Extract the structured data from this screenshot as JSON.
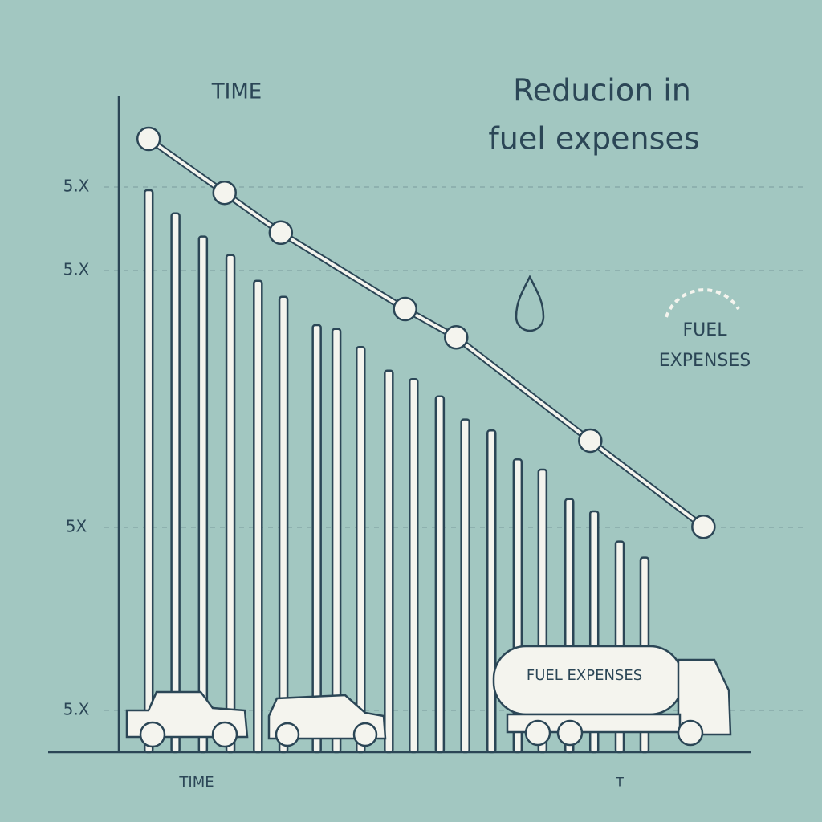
{
  "chart_data": {
    "type": "bar",
    "title_lines": [
      "Reducion in",
      "fuel expenses"
    ],
    "top_label": "TIME",
    "xlabel": "TIME",
    "annotations": [
      "FUEL",
      "EXPENSES",
      "FUEL EXPENSES",
      "T"
    ],
    "xlim": [
      0,
      100
    ],
    "ylim": [
      0,
      100
    ],
    "yticks": [
      {
        "value": 88,
        "label": "5.X"
      },
      {
        "value": 75,
        "label": "5.X"
      },
      {
        "value": 35,
        "label": "5X"
      },
      {
        "value": 6.5,
        "label": "5.X"
      }
    ],
    "grid": true,
    "series": [
      {
        "type": "bar",
        "color": "#f4f4ee",
        "x": [
          8.0,
          12.1,
          16.3,
          20.5,
          24.7,
          28.6,
          33.7,
          36.7,
          40.4,
          44.7,
          48.5,
          52.5,
          56.4,
          60.4,
          64.4,
          68.2,
          72.3,
          76.1,
          80.0,
          83.8
        ],
        "values": [
          87.5,
          83.9,
          80.3,
          77.4,
          73.4,
          70.9,
          66.5,
          65.9,
          63.1,
          59.4,
          58.1,
          55.4,
          51.8,
          50.1,
          45.6,
          44.0,
          39.4,
          37.5,
          32.8,
          30.3
        ]
      },
      {
        "type": "line",
        "color": "#f4f4ee",
        "x": [
          8.0,
          19.6,
          28.2,
          47.2,
          55.0,
          75.5,
          92.8
        ],
        "values": [
          95.5,
          87.1,
          80.9,
          69.0,
          64.6,
          48.5,
          35.1
        ]
      }
    ]
  }
}
